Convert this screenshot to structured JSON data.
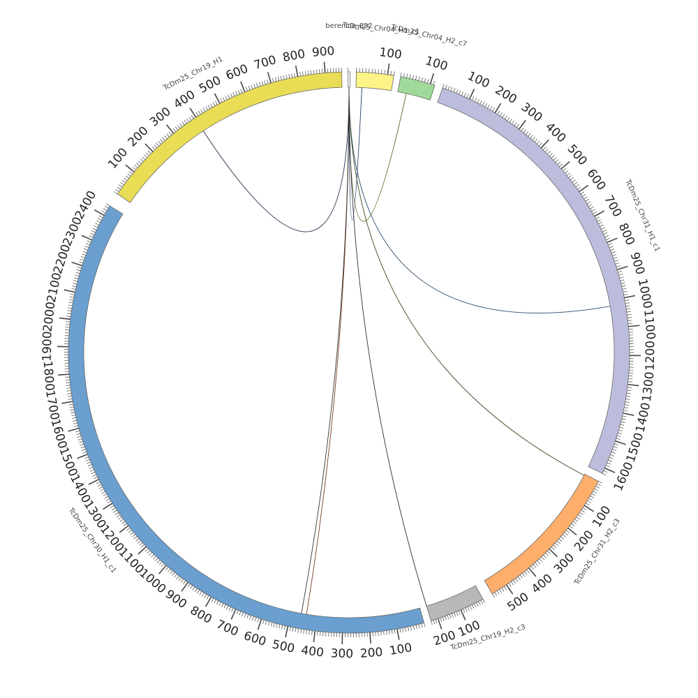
{
  "chart_data": {
    "type": "chord",
    "segments": [
      {
        "name": "TcDm25_Chr19_H1",
        "length": 960,
        "color": "#e8dd55",
        "labels": [
          100,
          200,
          300,
          400,
          500,
          600,
          700,
          800,
          900
        ]
      },
      {
        "name": "berenice_832",
        "length": 6,
        "color": "#ffffff",
        "labels": []
      },
      {
        "name": "TcDm25_Chr04_H1_c1",
        "length": 120,
        "color": "#fef386",
        "labels": [
          100
        ]
      },
      {
        "name": "TcDm25_Chr04_H2_c7",
        "length": 115,
        "color": "#a1d99b",
        "labels": [
          100
        ]
      },
      {
        "name": "TcDm25_Chr31_H1_c1",
        "length": 1620,
        "color": "#bcbddc",
        "labels": [
          100,
          200,
          300,
          400,
          500,
          600,
          700,
          800,
          900,
          1000,
          1100,
          1200,
          1300,
          1400,
          1500,
          1600
        ]
      },
      {
        "name": "TcDm25_Chr31_H2_c3",
        "length": 560,
        "color": "#fdae6b",
        "labels": [
          100,
          200,
          300,
          400,
          500
        ]
      },
      {
        "name": "TcDm25_Chr19_H2_c3",
        "length": 230,
        "color": "#b8b8b8",
        "labels": [
          100,
          200
        ]
      },
      {
        "name": "TcDm25_Chr30_H1_c1",
        "length": 2440,
        "color": "#6a9fcf",
        "labels": [
          100,
          200,
          300,
          400,
          500,
          600,
          700,
          800,
          900,
          1000,
          1100,
          1200,
          1300,
          1400,
          1500,
          1600,
          1700,
          1800,
          1900,
          2000,
          2100,
          2200,
          2300,
          2400
        ]
      }
    ],
    "links": [
      {
        "from": "berenice_832",
        "to": "TcDm25_Chr19_H1",
        "to_pos": 395,
        "color": "#1f2a44"
      },
      {
        "from": "berenice_832",
        "to": "TcDm25_Chr04_H1_c1",
        "to_pos": 20,
        "color": "#1f3a66"
      },
      {
        "from": "berenice_832",
        "to": "TcDm25_Chr04_H2_c7",
        "to_pos": 30,
        "color": "#5a6b1f"
      },
      {
        "from": "berenice_832",
        "to": "TcDm25_Chr31_H1_c1",
        "to_pos": 1020,
        "color": "#2a4a6a"
      },
      {
        "from": "berenice_832",
        "to": "TcDm25_Chr31_H2_c3",
        "to_pos": 5,
        "color": "#3a4a1f"
      },
      {
        "from": "berenice_832",
        "to": "TcDm25_Chr19_H2_c3",
        "to_pos": 230,
        "color": "#2a2a3a"
      },
      {
        "from": "berenice_832",
        "to": "TcDm25_Chr30_H1_c1",
        "to_pos": 440,
        "color": "#7a3a1f"
      },
      {
        "from": "berenice_832",
        "to": "TcDm25_Chr30_H1_c1",
        "to_pos": 460,
        "color": "#333333"
      }
    ]
  }
}
